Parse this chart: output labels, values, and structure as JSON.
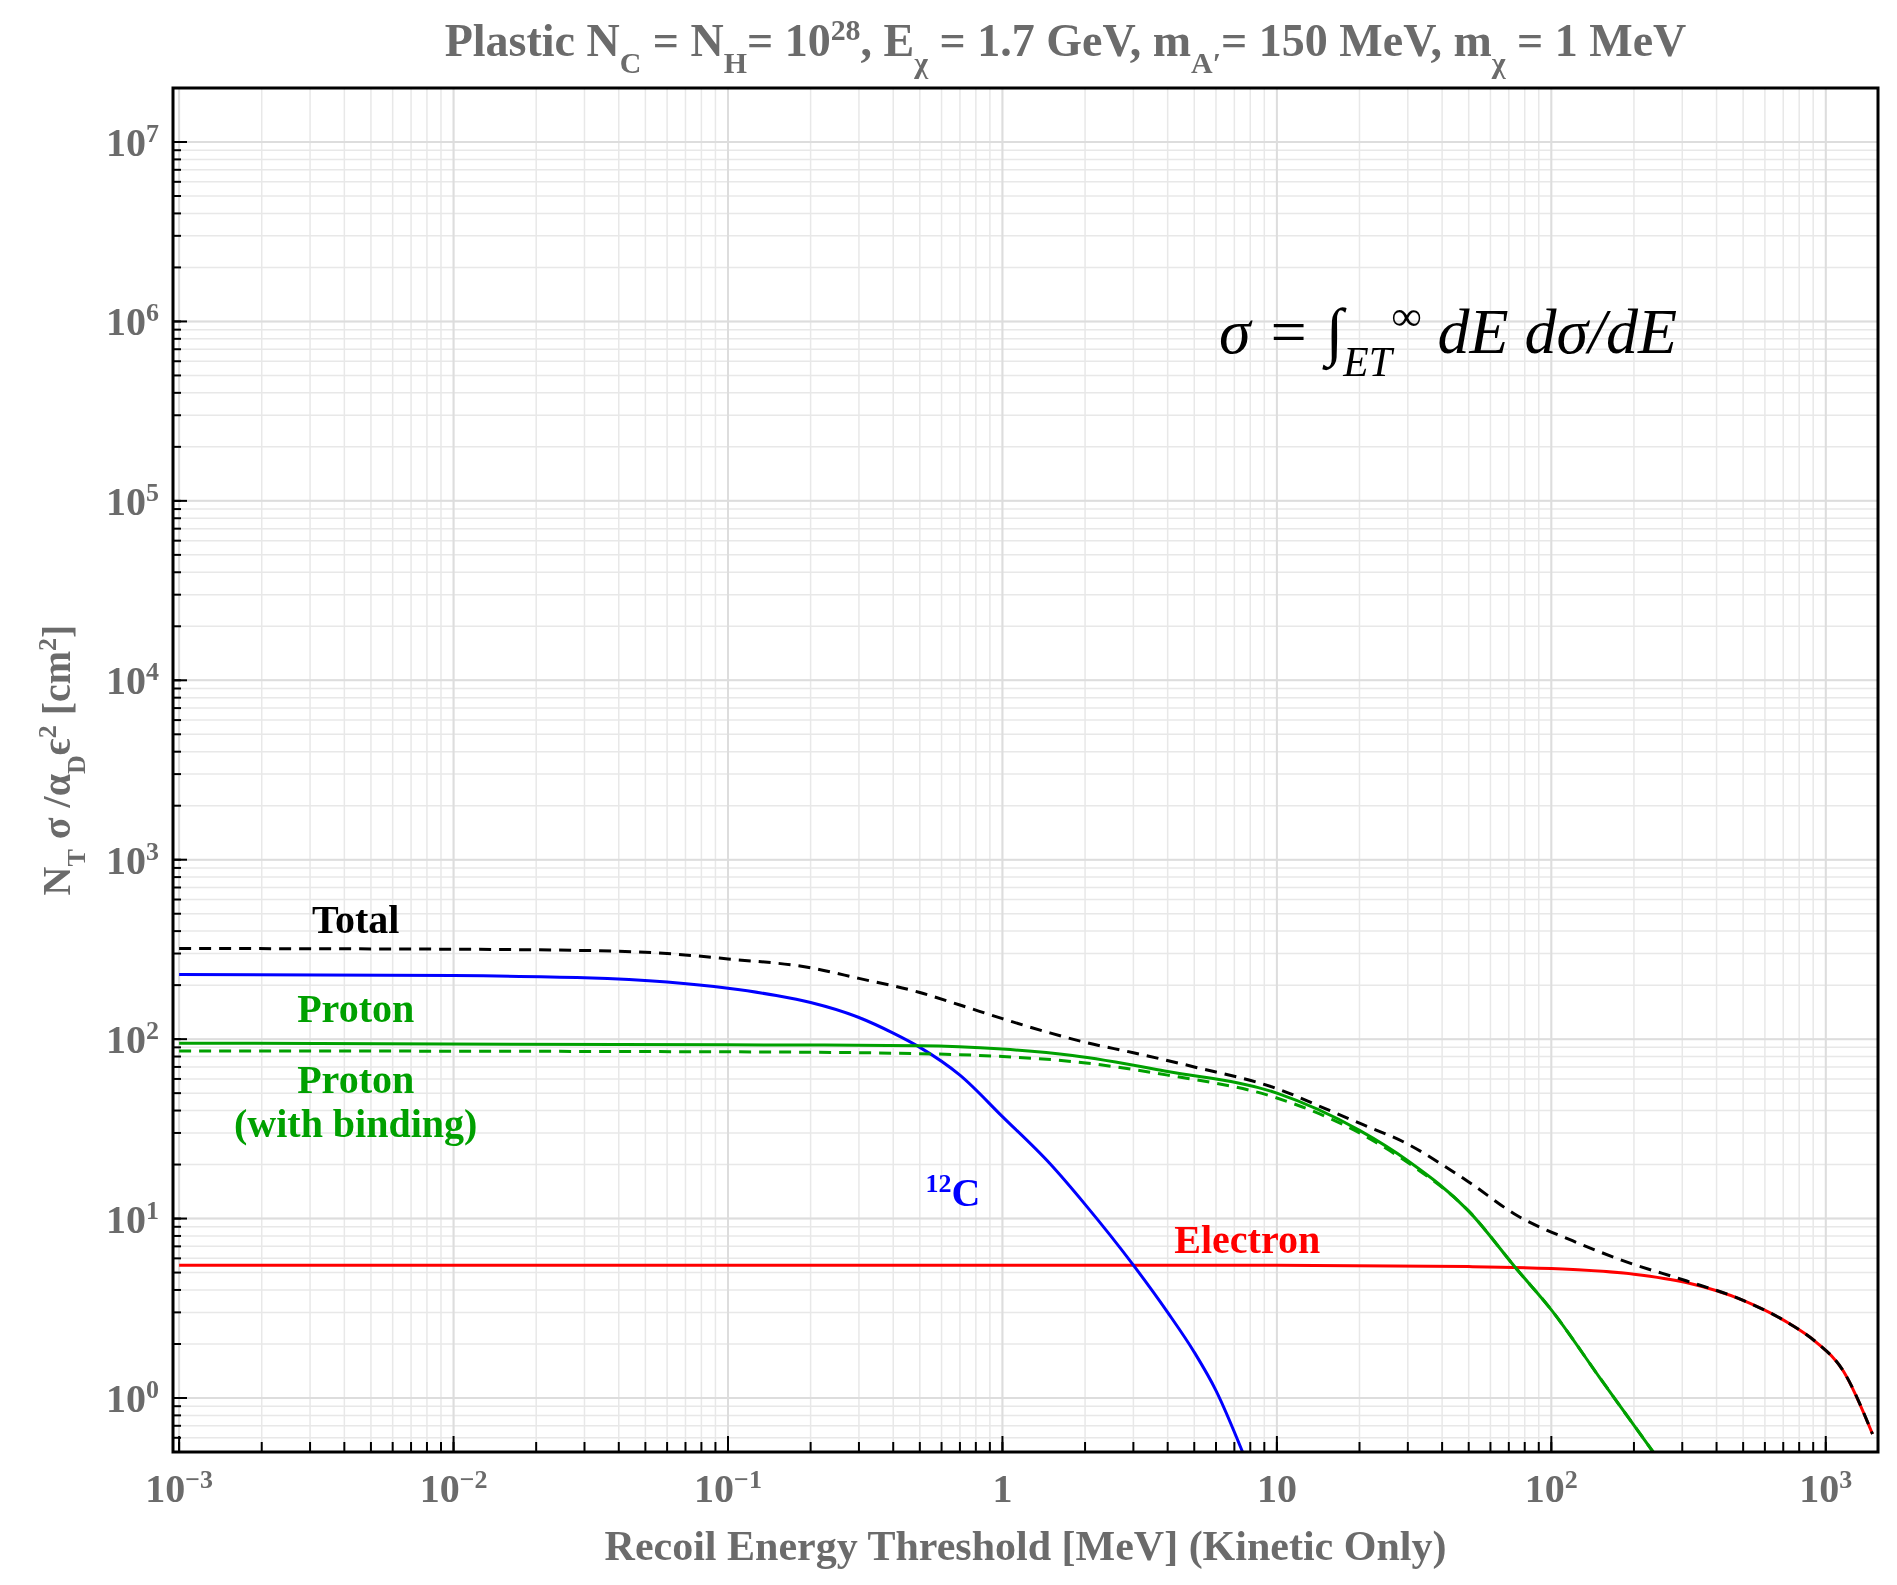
{
  "chart_data": {
    "type": "line",
    "title": "Plastic  N$_{C}$ = N$_{H}$= 10$^{28}$,  E$_{χ}$ = 1.7 GeV, m$_{A′}$= 150 MeV, m$_{χ}$ = 1 MeV",
    "xlabel": "Recoil Energy Threshold  [MeV]  (Kinetic Only)",
    "ylabel": "N$_{T}$ σ /α$_{D}$ϵ$^{2}$   [cm$^{2}$]",
    "annotations": [
      "σ = ∫$_{ET}$$^{∞}$ dE dσ/dE"
    ],
    "log": "xy",
    "grid": true,
    "xlim": [
      0.00095,
      1550
    ],
    "ylim": [
      0.5,
      20000000
    ],
    "xticks": [
      {
        "value": 0.001,
        "label": "10$^{−3}$"
      },
      {
        "value": 0.01,
        "label": "10$^{−2}$"
      },
      {
        "value": 0.1,
        "label": "10$^{−1}$"
      },
      1,
      10,
      {
        "value": 100,
        "label": "10$^{2}$"
      },
      {
        "value": 1000,
        "label": "10$^{3}$"
      }
    ],
    "yticks": [
      {
        "value": 1,
        "label": "10$^{0}$"
      },
      {
        "value": 10,
        "label": "10$^{1}$"
      },
      {
        "value": 100,
        "label": "10$^{2}$"
      },
      {
        "value": 1000,
        "label": "10$^{3}$"
      },
      {
        "value": 10000,
        "label": "10$^{4}$"
      },
      {
        "value": 100000,
        "label": "10$^{5}$"
      },
      {
        "value": 1000000,
        "label": "10$^{6}$"
      },
      {
        "value": 10000000,
        "label": "10$^{7}$"
      }
    ],
    "series": [
      {
        "name": "Total",
        "color": "#000000",
        "line_style": "dashed",
        "x": [
          0.001,
          0.01,
          0.03,
          0.06,
          0.1,
          0.2,
          0.3,
          0.5,
          0.7,
          1,
          1.5,
          2,
          3,
          5,
          10,
          15,
          20,
          30,
          40,
          50,
          75,
          120,
          190,
          310,
          500,
          736,
          915,
          1160,
          1480
        ],
        "values": [
          320,
          317,
          312,
          300,
          280,
          250,
          218,
          182,
          155,
          130,
          108,
          96,
          84,
          70,
          53,
          41,
          34,
          26,
          20,
          16,
          10.4,
          7.5,
          5.7,
          4.5,
          3.5,
          2.6,
          2.07,
          1.41,
          0.63
        ]
      },
      {
        "name": "Proton",
        "color": "#00a000",
        "line_style": "solid",
        "x": [
          0.001,
          0.1,
          0.5,
          1,
          1.8,
          4,
          10,
          20,
          30,
          50,
          75,
          100,
          150,
          235
        ],
        "values": [
          95,
          93,
          92,
          88,
          81,
          66,
          50,
          31,
          21,
          11,
          5.2,
          3.1,
          1.3,
          0.5
        ]
      },
      {
        "name": "Proton (with binding)",
        "color": "#00a000",
        "line_style": "dashed",
        "x": [
          0.001,
          0.1,
          0.5,
          1,
          1.8,
          4,
          10,
          20,
          30,
          50,
          75,
          100,
          150,
          235
        ],
        "values": [
          86,
          85,
          83,
          80,
          75,
          63,
          47,
          30,
          20.5,
          11,
          5.2,
          3.1,
          1.3,
          0.5
        ]
      },
      {
        "name": "$^{12}$C",
        "color": "#0000ff",
        "line_style": "solid",
        "x": [
          0.001,
          0.01,
          0.03,
          0.06,
          0.1,
          0.15,
          0.2,
          0.3,
          0.4,
          0.5,
          0.7,
          1,
          1.5,
          2,
          3,
          4,
          5,
          6,
          7.5
        ],
        "values": [
          229,
          226,
          220,
          208,
          192,
          175,
          160,
          132,
          108,
          90,
          63,
          37,
          20,
          12,
          5.5,
          3,
          1.8,
          1.1,
          0.5
        ]
      },
      {
        "name": "Electron",
        "color": "#ff0000",
        "line_style": "solid",
        "x": [
          0.001,
          10,
          50,
          120,
          200,
          310,
          500,
          736,
          915,
          1160,
          1480
        ],
        "values": [
          5.5,
          5.5,
          5.4,
          5.2,
          4.9,
          4.4,
          3.5,
          2.6,
          2.07,
          1.41,
          0.63
        ]
      }
    ]
  }
}
